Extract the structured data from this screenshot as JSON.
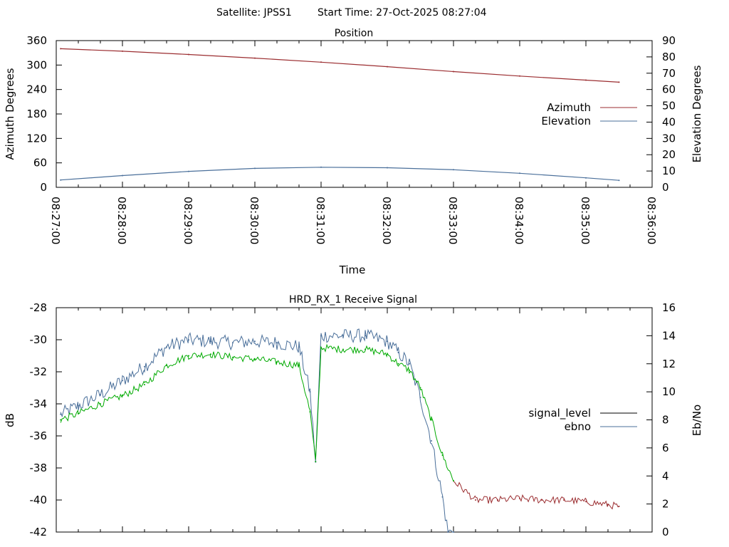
{
  "header": {
    "satellite": "Satellite: JPSS1",
    "start_time": "Start Time: 27-Oct-2025 08:27:04"
  },
  "chart_data": [
    {
      "type": "line",
      "title": "Position",
      "xlabel": "Time",
      "ylabel": "Azimuth Degrees",
      "y2label": "Elevation Degrees",
      "x_ticks": [
        "08:27:00",
        "08:28:00",
        "08:29:00",
        "08:30:00",
        "08:31:00",
        "08:32:00",
        "08:33:00",
        "08:34:00",
        "08:35:00",
        "08:36:00"
      ],
      "x_range": [
        "08:27:00",
        "08:36:00"
      ],
      "ylim": [
        0,
        360
      ],
      "y_ticks": [
        0,
        60,
        120,
        180,
        240,
        300,
        360
      ],
      "y2lim": [
        0,
        90
      ],
      "y2_ticks": [
        0,
        10,
        20,
        30,
        40,
        50,
        60,
        70,
        80,
        90
      ],
      "legend_position": "right",
      "series": [
        {
          "name": "Azimuth",
          "axis": "y",
          "color": "#9b2d30",
          "x": [
            "08:27:04",
            "08:28:00",
            "08:29:00",
            "08:30:00",
            "08:31:00",
            "08:32:00",
            "08:33:00",
            "08:34:00",
            "08:35:00",
            "08:35:30"
          ],
          "values": [
            340,
            334,
            326,
            317,
            307,
            296,
            284,
            273,
            263,
            258
          ]
        },
        {
          "name": "Elevation",
          "axis": "y2",
          "color": "#4a6f9a",
          "x": [
            "08:27:04",
            "08:28:00",
            "08:29:00",
            "08:30:00",
            "08:31:00",
            "08:32:00",
            "08:33:00",
            "08:34:00",
            "08:35:00",
            "08:35:30"
          ],
          "values": [
            4.5,
            7.2,
            9.8,
            11.6,
            12.3,
            12.0,
            10.8,
            8.6,
            5.8,
            4.3
          ]
        }
      ]
    },
    {
      "type": "line",
      "title": "HRD_RX_1 Receive Signal",
      "ylabel": "dB",
      "y2label": "Eb/No",
      "ylim": [
        -42,
        -28
      ],
      "y_ticks": [
        -42,
        -40,
        -38,
        -36,
        -34,
        -32,
        -30,
        -28
      ],
      "y2lim": [
        0,
        16
      ],
      "y2_ticks": [
        0,
        2,
        4,
        6,
        8,
        10,
        12,
        14,
        16
      ],
      "x_range": [
        "08:27:00",
        "08:36:00"
      ],
      "legend_position": "right",
      "legend_line_colors": [
        "#000000",
        "#4a6f9a"
      ],
      "series": [
        {
          "name": "signal_level",
          "axis": "y",
          "colors": {
            "locked": "#00aa00",
            "unlocked": "#9b2d30"
          },
          "x": [
            "08:27:04",
            "08:27:20",
            "08:27:40",
            "08:28:00",
            "08:28:20",
            "08:28:40",
            "08:29:00",
            "08:29:20",
            "08:29:40",
            "08:30:00",
            "08:30:20",
            "08:30:40",
            "08:30:50",
            "08:30:55",
            "08:31:00",
            "08:31:20",
            "08:31:40",
            "08:32:00",
            "08:32:10",
            "08:32:20",
            "08:32:30",
            "08:32:40",
            "08:32:50",
            "08:33:00",
            "08:33:20",
            "08:33:40",
            "08:34:00",
            "08:34:20",
            "08:34:40",
            "08:35:00",
            "08:35:20",
            "08:35:30"
          ],
          "values": [
            -35.0,
            -34.6,
            -34.0,
            -33.5,
            -32.8,
            -31.6,
            -31.0,
            -30.9,
            -31.1,
            -31.2,
            -31.4,
            -31.6,
            -34.5,
            -37.6,
            -30.5,
            -30.6,
            -30.6,
            -30.9,
            -31.5,
            -31.9,
            -33.0,
            -35.0,
            -37.2,
            -38.8,
            -40.0,
            -40.0,
            -39.9,
            -40.0,
            -40.0,
            -40.1,
            -40.3,
            -40.4
          ]
        },
        {
          "name": "ebno",
          "axis": "y2",
          "color": "#4a6f9a",
          "x": [
            "08:27:04",
            "08:27:20",
            "08:27:40",
            "08:28:00",
            "08:28:20",
            "08:28:40",
            "08:29:00",
            "08:29:20",
            "08:29:40",
            "08:30:00",
            "08:30:20",
            "08:30:40",
            "08:30:50",
            "08:30:55",
            "08:31:00",
            "08:31:20",
            "08:31:40",
            "08:32:00",
            "08:32:10",
            "08:32:20",
            "08:32:30",
            "08:32:40",
            "08:32:50",
            "08:32:55",
            "08:33:00"
          ],
          "values": [
            8.4,
            9.0,
            9.8,
            10.8,
            11.8,
            13.2,
            13.7,
            13.6,
            13.5,
            13.6,
            13.5,
            13.2,
            10.0,
            5.0,
            14.0,
            14.0,
            14.0,
            13.6,
            12.8,
            12.0,
            9.6,
            6.5,
            2.5,
            0.0,
            0.0
          ]
        }
      ]
    }
  ]
}
